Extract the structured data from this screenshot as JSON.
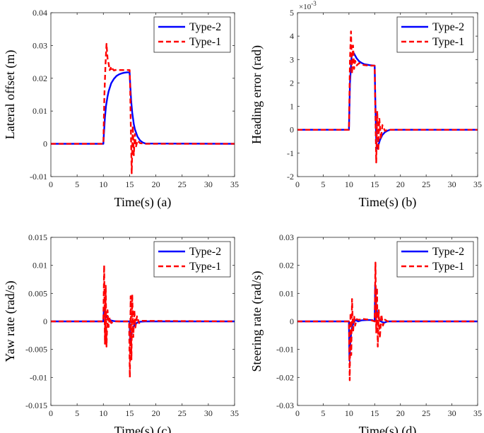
{
  "chart_data": [
    {
      "id": "a",
      "type": "line",
      "xlabel": "Time(s) (a)",
      "ylabel": "Lateral offset (m)",
      "xlim": [
        0,
        35
      ],
      "ylim": [
        -0.01,
        0.04
      ],
      "xticks": [
        "0",
        "5",
        "10",
        "15",
        "20",
        "25",
        "30",
        "35"
      ],
      "yticks": [
        "-0.01",
        "0",
        "0.01",
        "0.02",
        "0.03",
        "0.04"
      ],
      "ytick_values": [
        -0.01,
        0,
        0.01,
        0.02,
        0.03,
        0.04
      ],
      "exponent_label": "",
      "legend": [
        "Type-2",
        "Type-1"
      ],
      "legend_position": "top-right",
      "series": [
        {
          "name": "Type-2",
          "color": "#0000ff",
          "style": "solid",
          "x": [
            0,
            10,
            10.1,
            10.3,
            10.5,
            10.8,
            11,
            11.5,
            12,
            12.5,
            13,
            13.5,
            14,
            14.5,
            15,
            15.1,
            15.3,
            15.5,
            15.8,
            16,
            16.5,
            17,
            17.5,
            18,
            35
          ],
          "y": [
            0,
            0,
            0.003,
            0.008,
            0.0115,
            0.0145,
            0.016,
            0.0185,
            0.0198,
            0.0207,
            0.0212,
            0.0215,
            0.0217,
            0.0218,
            0.0218,
            0.0185,
            0.013,
            0.0095,
            0.006,
            0.0045,
            0.0022,
            0.001,
            0.0004,
            0.0001,
            0
          ]
        },
        {
          "name": "Type-1",
          "color": "#ff0000",
          "style": "dashed",
          "x": [
            0,
            10,
            10.2,
            10.4,
            10.6,
            10.8,
            11,
            11.2,
            11.4,
            11.6,
            11.8,
            12,
            12.5,
            13,
            14,
            15,
            15.1,
            15.2,
            15.4,
            15.6,
            15.8,
            16,
            16.2,
            16.5,
            17,
            18,
            35
          ],
          "y": [
            0,
            0,
            0.015,
            0.024,
            0.0305,
            0.026,
            0.0245,
            0.0225,
            0.0232,
            0.0222,
            0.0228,
            0.0224,
            0.0226,
            0.0225,
            0.0225,
            0.0225,
            0.018,
            0.008,
            -0.009,
            0.0055,
            -0.0035,
            0.003,
            -0.001,
            0.001,
            0.0002,
            0,
            0
          ]
        }
      ]
    },
    {
      "id": "b",
      "type": "line",
      "xlabel": "Time(s) (b)",
      "ylabel": "Heading error (rad)",
      "xlim": [
        0,
        35
      ],
      "ylim": [
        -2,
        5
      ],
      "xticks": [
        "0",
        "5",
        "10",
        "15",
        "20",
        "25",
        "30",
        "35"
      ],
      "yticks": [
        "-2",
        "-1",
        "0",
        "1",
        "2",
        "3",
        "4",
        "5"
      ],
      "ytick_values": [
        -2,
        -1,
        0,
        1,
        2,
        3,
        4,
        5
      ],
      "exponent_label": "×10",
      "exponent_power": "-3",
      "legend": [
        "Type-2",
        "Type-1"
      ],
      "legend_position": "top-right",
      "series": [
        {
          "name": "Type-2",
          "color": "#0000ff",
          "style": "solid",
          "x": [
            0,
            10,
            10.2,
            10.5,
            10.8,
            11,
            11.5,
            12,
            12.5,
            13,
            14,
            15,
            15.1,
            15.3,
            15.5,
            15.8,
            16,
            16.5,
            17,
            17.5,
            18,
            35
          ],
          "y": [
            0,
            0,
            2,
            3.1,
            3.32,
            3.25,
            3.05,
            2.92,
            2.85,
            2.8,
            2.76,
            2.74,
            1.5,
            -0.5,
            -0.8,
            -0.6,
            -0.45,
            -0.22,
            -0.1,
            -0.04,
            0,
            0
          ]
        },
        {
          "name": "Type-1",
          "color": "#ff0000",
          "style": "dashed",
          "x": [
            0,
            10,
            10.2,
            10.4,
            10.6,
            10.8,
            11,
            11.2,
            11.5,
            12,
            12.5,
            13,
            14,
            15,
            15.1,
            15.3,
            15.5,
            15.7,
            15.9,
            16.2,
            16.5,
            17,
            17.5,
            35
          ],
          "y": [
            0,
            0,
            3,
            4.2,
            2.4,
            3.6,
            2.6,
            2.95,
            2.75,
            2.85,
            2.78,
            2.76,
            2.74,
            2.74,
            1.2,
            -1.4,
            0.8,
            -0.9,
            0.5,
            -0.4,
            0.2,
            -0.05,
            0,
            0
          ]
        }
      ]
    },
    {
      "id": "c",
      "type": "line",
      "xlabel": "Time(s) (c)",
      "ylabel": "Yaw rate (rad/s)",
      "xlim": [
        0,
        35
      ],
      "ylim": [
        -0.015,
        0.015
      ],
      "xticks": [
        "0",
        "5",
        "10",
        "15",
        "20",
        "25",
        "30",
        "35"
      ],
      "yticks": [
        "-0.015",
        "-0.01",
        "-0.005",
        "0",
        "0.005",
        "0.01",
        "0.015"
      ],
      "ytick_values": [
        -0.015,
        -0.01,
        -0.005,
        0,
        0.005,
        0.01,
        0.015
      ],
      "exponent_label": "",
      "legend": [
        "Type-2",
        "Type-1"
      ],
      "legend_position": "top-right",
      "series": [
        {
          "name": "Type-2",
          "color": "#0000ff",
          "style": "solid",
          "x": [
            0,
            10,
            10.1,
            10.3,
            10.6,
            11,
            11.5,
            12,
            13,
            15,
            15.1,
            15.3,
            15.6,
            16,
            16.5,
            17,
            18,
            35
          ],
          "y": [
            0,
            0,
            0.0022,
            0.0015,
            0.0008,
            0.0004,
            0.00015,
            5e-05,
            0,
            0,
            -0.0035,
            -0.0025,
            -0.0012,
            -0.0005,
            -0.0002,
            -5e-05,
            0,
            0
          ]
        },
        {
          "name": "Type-1",
          "color": "#ff0000",
          "style": "dashed",
          "x": [
            0,
            10,
            10.15,
            10.3,
            10.45,
            10.6,
            10.8,
            11,
            11.2,
            11.5,
            12,
            14.9,
            15.05,
            15.2,
            15.35,
            15.5,
            15.7,
            15.9,
            16.1,
            16.4,
            16.8,
            17.2,
            35
          ],
          "y": [
            0,
            0,
            0.01,
            -0.004,
            0.0065,
            -0.0045,
            0.002,
            -0.001,
            0.0007,
            -0.0003,
            0,
            0,
            -0.01,
            0.0045,
            -0.0068,
            0.0048,
            -0.0028,
            0.002,
            -0.0011,
            0.0009,
            -0.0003,
            0.0001,
            0
          ]
        }
      ]
    },
    {
      "id": "d",
      "type": "line",
      "xlabel": "Time(s) (d)",
      "ylabel": "Steering rate (rad/s)",
      "xlim": [
        0,
        35
      ],
      "ylim": [
        -0.03,
        0.03
      ],
      "xticks": [
        "0",
        "5",
        "10",
        "15",
        "20",
        "25",
        "30",
        "35"
      ],
      "yticks": [
        "-0.03",
        "-0.02",
        "-0.01",
        "0",
        "0.01",
        "0.02",
        "0.03"
      ],
      "ytick_values": [
        -0.03,
        -0.02,
        -0.01,
        0,
        0.01,
        0.02,
        0.03
      ],
      "exponent_label": "",
      "legend": [
        "Type-2",
        "Type-1"
      ],
      "legend_position": "top-right",
      "series": [
        {
          "name": "Type-2",
          "color": "#0000ff",
          "style": "solid",
          "x": [
            0,
            10,
            10.1,
            10.25,
            10.5,
            10.8,
            11.2,
            11.8,
            12.5,
            13.5,
            14.5,
            15,
            15.1,
            15.25,
            15.5,
            15.8,
            16.2,
            16.8,
            17.5,
            18.5,
            35
          ],
          "y": [
            0,
            0,
            -0.014,
            -0.008,
            -0.003,
            -0.001,
            0.0005,
            0,
            0.0004,
            0.0005,
            0.0005,
            0,
            0.013,
            0.007,
            0.0025,
            0.001,
            0,
            -0.0005,
            0,
            0,
            0
          ]
        },
        {
          "name": "Type-1",
          "color": "#ff0000",
          "style": "dashed",
          "x": [
            0,
            10,
            10.15,
            10.3,
            10.45,
            10.6,
            10.8,
            11,
            11.2,
            11.5,
            12,
            12.5,
            13,
            14,
            15,
            15.15,
            15.3,
            15.45,
            15.6,
            15.8,
            16,
            16.3,
            16.6,
            17,
            17.5,
            35
          ],
          "y": [
            0,
            0,
            -0.021,
            0.003,
            -0.012,
            0.008,
            -0.004,
            0.002,
            -0.0015,
            0.0008,
            0.0005,
            0.001,
            0.0008,
            0.0006,
            0,
            0.021,
            -0.004,
            0.012,
            -0.009,
            0.004,
            -0.006,
            0.0025,
            -0.0015,
            0.0006,
            0,
            0
          ]
        }
      ]
    }
  ]
}
